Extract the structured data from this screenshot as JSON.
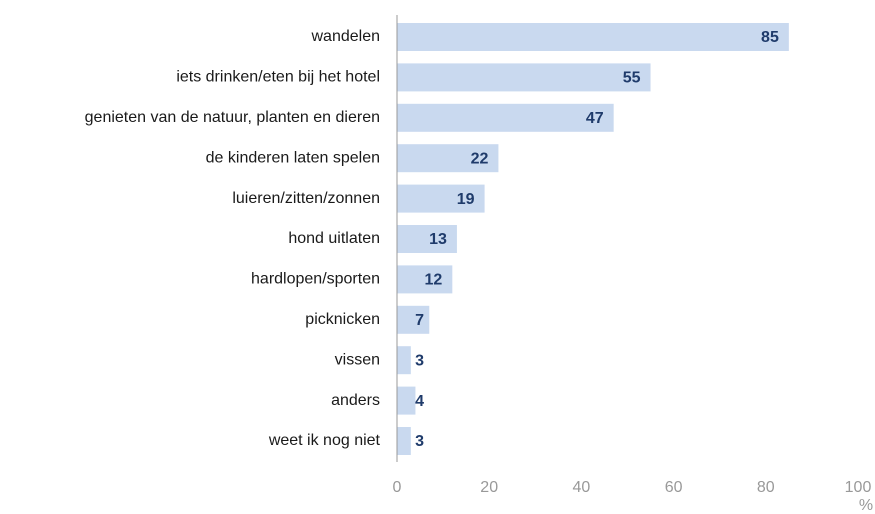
{
  "chart_data": {
    "type": "barh",
    "categories": [
      "wandelen",
      "iets drinken/eten bij het hotel",
      "genieten van de natuur, planten en dieren",
      "de kinderen laten spelen",
      "luieren/zitten/zonnen",
      "hond uitlaten",
      "hardlopen/sporten",
      "picknicken",
      "vissen",
      "anders",
      "weet ik nog niet"
    ],
    "values": [
      85,
      55,
      47,
      22,
      19,
      13,
      12,
      7,
      3,
      4,
      3
    ],
    "color": "#c9d9ef",
    "label_color": "#1f3b6b",
    "xlim": [
      0,
      100
    ],
    "xticks": [
      0,
      20,
      40,
      60,
      80,
      100
    ],
    "xlabel": "%"
  }
}
